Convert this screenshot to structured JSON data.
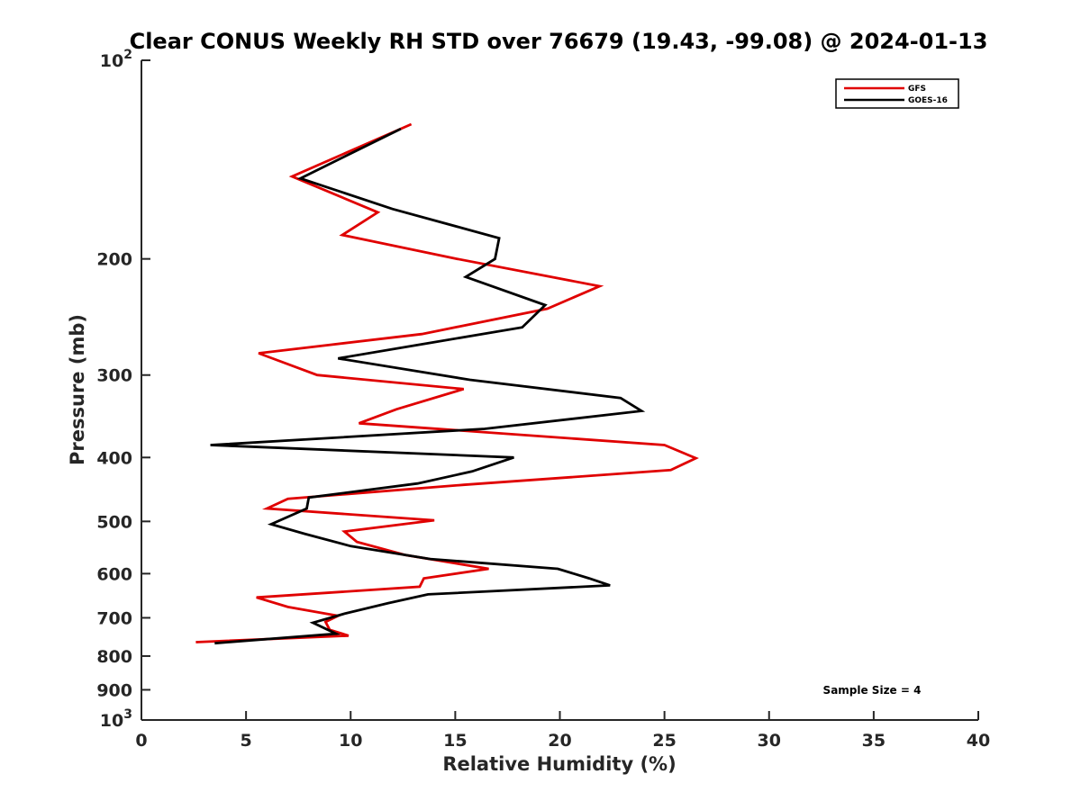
{
  "chart_data": {
    "type": "line",
    "title": "Clear CONUS Weekly RH STD over 76679 (19.43, -99.08) @ 2024-01-13",
    "xlabel": "Relative Humidity (%)",
    "ylabel": "Pressure (mb)",
    "xlim": [
      0,
      40
    ],
    "ylim": [
      100,
      1000
    ],
    "y_scale": "log",
    "y_reversed": true,
    "x_ticks": [
      {
        "value": 0,
        "label": "0"
      },
      {
        "value": 5,
        "label": "5"
      },
      {
        "value": 10,
        "label": "10"
      },
      {
        "value": 15,
        "label": "15"
      },
      {
        "value": 20,
        "label": "20"
      },
      {
        "value": 25,
        "label": "25"
      },
      {
        "value": 30,
        "label": "30"
      },
      {
        "value": 35,
        "label": "35"
      },
      {
        "value": 40,
        "label": "40"
      }
    ],
    "y_ticks": [
      {
        "value": 100,
        "base": "10",
        "exp": "2"
      },
      {
        "value": 200,
        "label": "200"
      },
      {
        "value": 300,
        "label": "300"
      },
      {
        "value": 400,
        "label": "400"
      },
      {
        "value": 500,
        "label": "500"
      },
      {
        "value": 600,
        "label": "600"
      },
      {
        "value": 700,
        "label": "700"
      },
      {
        "value": 800,
        "label": "800"
      },
      {
        "value": 900,
        "label": "900"
      },
      {
        "value": 1000,
        "base": "10",
        "exp": "3"
      }
    ],
    "grid": false,
    "legend_position": "top-right",
    "annotation": "Sample Size = 4",
    "series": [
      {
        "name": "GFS",
        "color": "#e00000",
        "points": [
          [
            12.9,
            125
          ],
          [
            7.2,
            150
          ],
          [
            11.3,
            170
          ],
          [
            9.6,
            184
          ],
          [
            15.1,
            200
          ],
          [
            21.9,
            220
          ],
          [
            19.4,
            238
          ],
          [
            13.4,
            260
          ],
          [
            5.6,
            278
          ],
          [
            8.4,
            300
          ],
          [
            15.4,
            315
          ],
          [
            12.2,
            338
          ],
          [
            10.4,
            355
          ],
          [
            25.0,
            383
          ],
          [
            26.5,
            401
          ],
          [
            25.3,
            418
          ],
          [
            15.4,
            440
          ],
          [
            7.0,
            462
          ],
          [
            6.0,
            478
          ],
          [
            14.0,
            498
          ],
          [
            9.7,
            518
          ],
          [
            10.3,
            537
          ],
          [
            12.6,
            562
          ],
          [
            16.6,
            590
          ],
          [
            13.5,
            610
          ],
          [
            13.3,
            628
          ],
          [
            5.5,
            652
          ],
          [
            7.0,
            674
          ],
          [
            9.4,
            695
          ],
          [
            8.8,
            710
          ],
          [
            9.0,
            730
          ],
          [
            9.9,
            745
          ],
          [
            2.6,
            762
          ]
        ]
      },
      {
        "name": "GOES-16",
        "color": "#000000",
        "points": [
          [
            12.4,
            127
          ],
          [
            7.6,
            151
          ],
          [
            12.0,
            168
          ],
          [
            17.1,
            186
          ],
          [
            16.9,
            200
          ],
          [
            15.5,
            213
          ],
          [
            19.3,
            235
          ],
          [
            18.2,
            254
          ],
          [
            9.4,
            283
          ],
          [
            15.7,
            305
          ],
          [
            22.9,
            325
          ],
          [
            23.9,
            340
          ],
          [
            16.4,
            362
          ],
          [
            3.3,
            383
          ],
          [
            17.8,
            400
          ],
          [
            15.8,
            420
          ],
          [
            13.2,
            438
          ],
          [
            8.0,
            460
          ],
          [
            7.9,
            478
          ],
          [
            6.2,
            505
          ],
          [
            7.8,
            522
          ],
          [
            10.0,
            545
          ],
          [
            13.8,
            570
          ],
          [
            19.9,
            590
          ],
          [
            21.4,
            610
          ],
          [
            22.4,
            625
          ],
          [
            13.7,
            645
          ],
          [
            11.8,
            665
          ],
          [
            9.7,
            690
          ],
          [
            8.2,
            712
          ],
          [
            9.3,
            740
          ],
          [
            3.5,
            765
          ]
        ]
      }
    ]
  }
}
